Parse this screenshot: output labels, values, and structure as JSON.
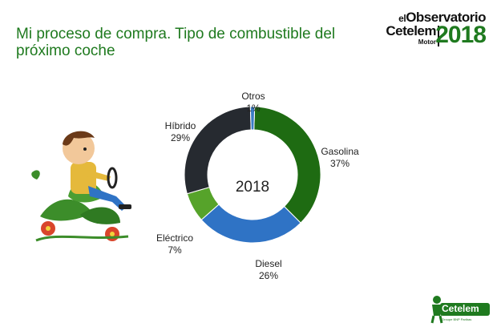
{
  "header": {
    "title_line1": "Mi proceso de compra. Tipo de combustible del",
    "title_line2": "próximo coche"
  },
  "brand": {
    "line1_prefix": "el",
    "line1": "Observatorio",
    "line2": "Cetelem",
    "line3": "Motor",
    "year": "2018"
  },
  "footer": {
    "logo_text": "Cetelem",
    "logo_tagline": "Groupe BNP Paribas"
  },
  "colors": {
    "title": "#1f7a1f",
    "gasolina": "#1e6b12",
    "diesel": "#2f73c5",
    "electrico": "#56a32a",
    "hibrido": "#262a30",
    "otros": "#3a7cc4"
  },
  "chart_data": {
    "type": "pie",
    "center_label": "2018",
    "slices": [
      {
        "name": "Gasolina",
        "label": "37%",
        "value": 37,
        "color": "#1e6b12"
      },
      {
        "name": "Diesel",
        "label": "26%",
        "value": 26,
        "color": "#2f73c5"
      },
      {
        "name": "Eléctrico",
        "label": "7%",
        "value": 7,
        "color": "#56a32a"
      },
      {
        "name": "Híbrido",
        "label": "29%",
        "value": 29,
        "color": "#262a30"
      },
      {
        "name": "Otros",
        "label": "1%",
        "value": 1,
        "color": "#3a7cc4"
      }
    ]
  }
}
